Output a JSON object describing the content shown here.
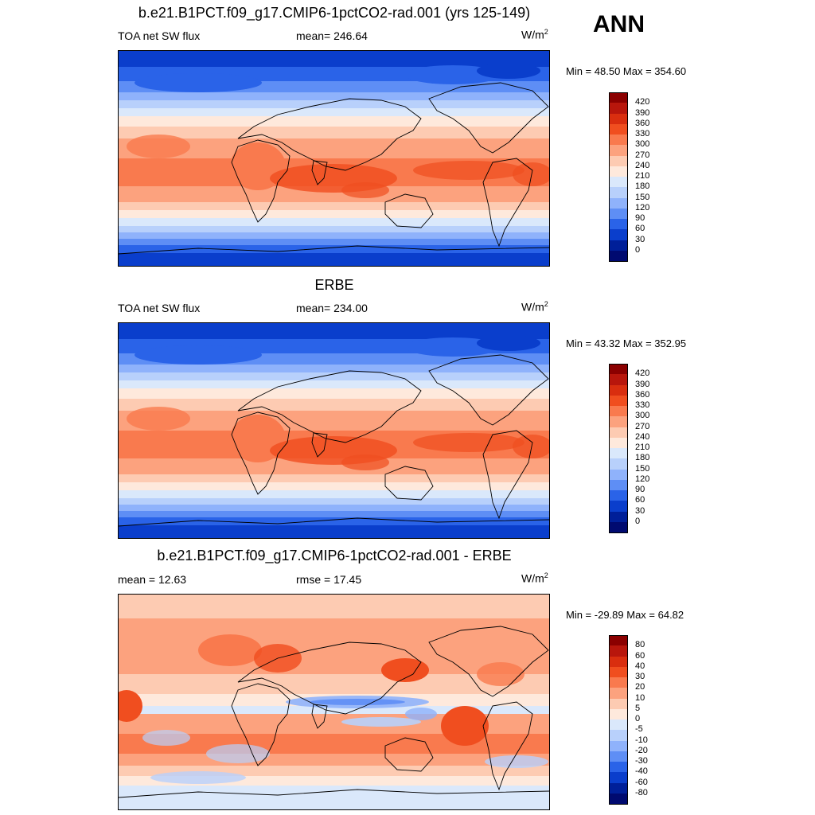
{
  "season": "ANN",
  "panels": [
    {
      "title": "b.e21.B1PCT.f09_g17.CMIP6-1pctCO2-rad.001 (yrs 125-149)",
      "left": "TOA net SW flux",
      "center": "mean= 246.64",
      "units": "W/m",
      "units_sup": "2",
      "minmax": "Min =  48.50 Max = 354.60",
      "colorbar_labels": [
        "420",
        "390",
        "360",
        "330",
        "300",
        "270",
        "240",
        "210",
        "180",
        "150",
        "120",
        "90",
        "60",
        "30",
        "0"
      ],
      "colorbar_colors": [
        "#8b0000",
        "#b8160c",
        "#d92e0f",
        "#f04e1f",
        "#f97a4e",
        "#fca27e",
        "#fdcbb2",
        "#fee9dc",
        "#dae8fb",
        "#b8d0fb",
        "#8fb2fb",
        "#5e8ef5",
        "#2a63e8",
        "#0a3ecc",
        "#001f99",
        "#000a70"
      ]
    },
    {
      "title": "ERBE",
      "left": "TOA net SW flux",
      "center": "mean= 234.00",
      "units": "W/m",
      "units_sup": "2",
      "minmax": "Min =  43.32 Max = 352.95",
      "colorbar_labels": [
        "420",
        "390",
        "360",
        "330",
        "300",
        "270",
        "240",
        "210",
        "180",
        "150",
        "120",
        "90",
        "60",
        "30",
        "0"
      ],
      "colorbar_colors": [
        "#8b0000",
        "#b8160c",
        "#d92e0f",
        "#f04e1f",
        "#f97a4e",
        "#fca27e",
        "#fdcbb2",
        "#fee9dc",
        "#dae8fb",
        "#b8d0fb",
        "#8fb2fb",
        "#5e8ef5",
        "#2a63e8",
        "#0a3ecc",
        "#001f99",
        "#000a70"
      ]
    },
    {
      "title": "b.e21.B1PCT.f09_g17.CMIP6-1pctCO2-rad.001 - ERBE",
      "left": "mean =  12.63",
      "center": "rmse =  17.45",
      "units": "W/m",
      "units_sup": "2",
      "minmax": "Min = -29.89 Max =  64.82",
      "colorbar_labels": [
        "80",
        "60",
        "40",
        "30",
        "20",
        "10",
        "5",
        "0",
        "-5",
        "-10",
        "-20",
        "-30",
        "-40",
        "-60",
        "-80"
      ],
      "colorbar_colors": [
        "#8b0000",
        "#b8160c",
        "#d92e0f",
        "#f04e1f",
        "#f97a4e",
        "#fca27e",
        "#fdcbb2",
        "#fee9dc",
        "#dae8fb",
        "#b8d0fb",
        "#8fb2fb",
        "#5e8ef5",
        "#2a63e8",
        "#0a3ecc",
        "#001f99",
        "#000a70"
      ]
    }
  ]
}
